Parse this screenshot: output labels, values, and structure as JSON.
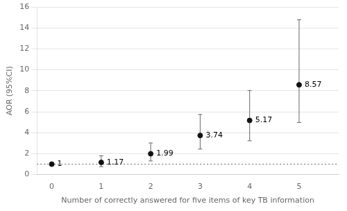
{
  "chart_data": {
    "type": "scatter",
    "x": [
      0,
      1,
      2,
      3,
      4,
      5
    ],
    "values": [
      1.0,
      1.17,
      1.99,
      3.74,
      5.17,
      8.57
    ],
    "ci_low": [
      1.0,
      0.76,
      1.3,
      2.44,
      3.23,
      4.97
    ],
    "ci_high": [
      1.0,
      1.8,
      3.02,
      5.74,
      8.03,
      14.78
    ],
    "xlabel": "Number of correctly answered for five items of key TB information",
    "ylabel": "AOR (95%CI)",
    "xlim": [
      -0.3,
      5.8
    ],
    "xticks": [
      0,
      1,
      2,
      3,
      4,
      5
    ],
    "ylim": [
      0,
      16
    ],
    "yticks": [
      0,
      2,
      4,
      6,
      8,
      10,
      12,
      14,
      16
    ],
    "reference_line": 1.0,
    "color": "#111111",
    "marker": "circle",
    "grid": "y",
    "data_labels": true
  }
}
